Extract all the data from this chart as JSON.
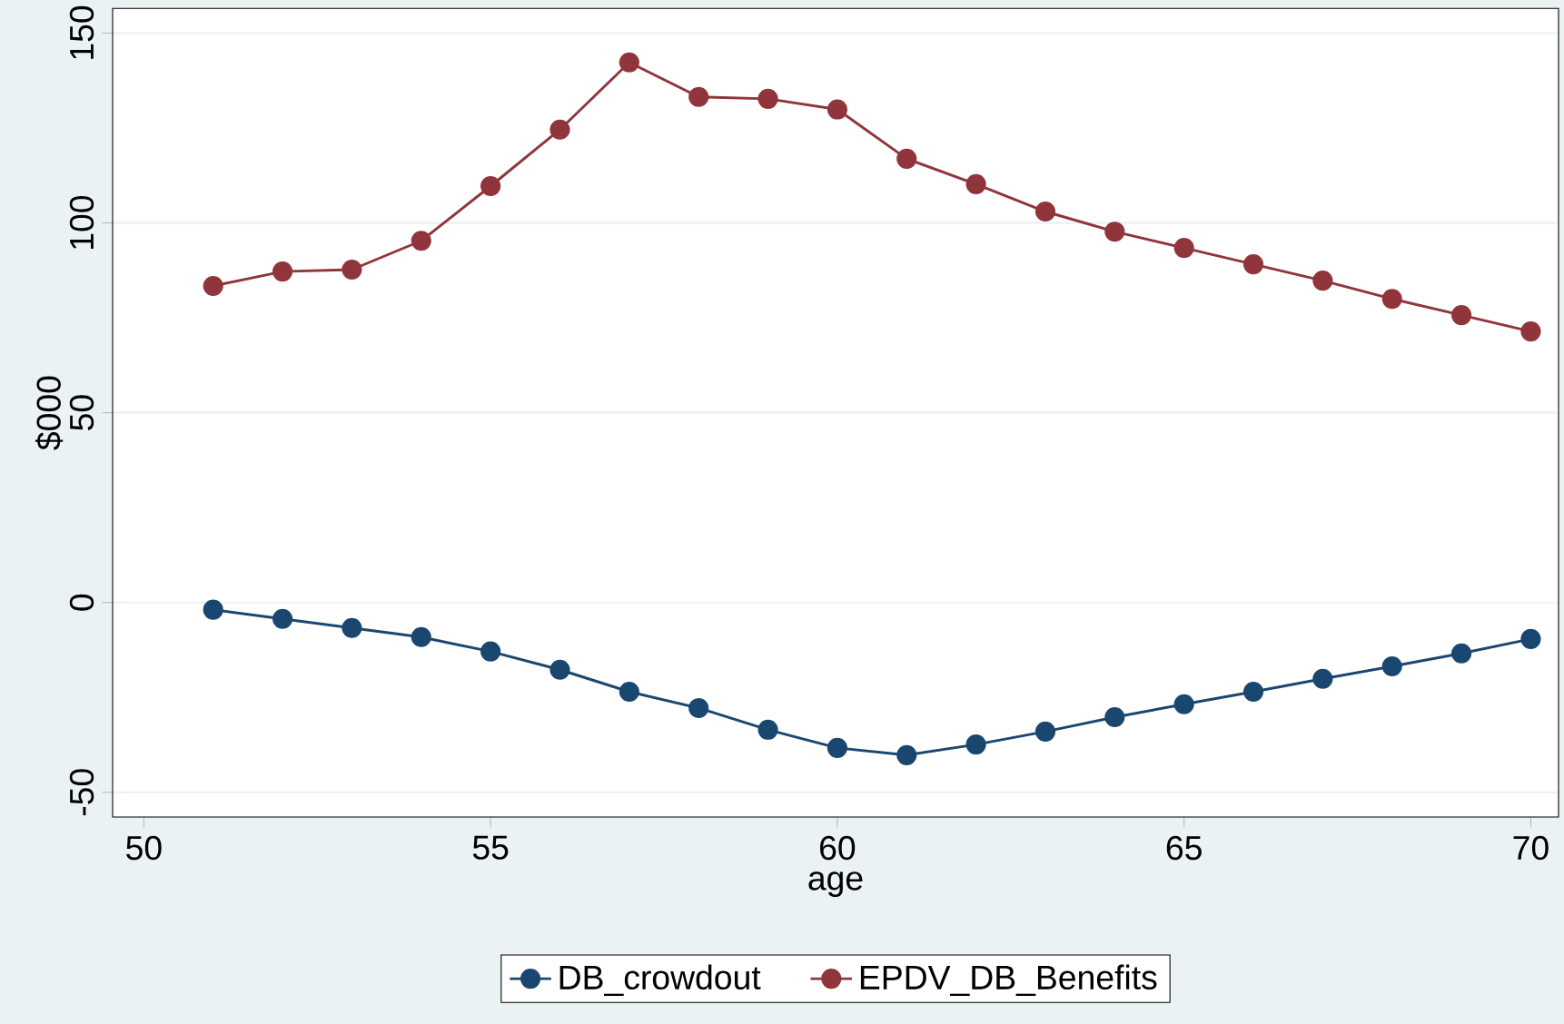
{
  "chart_data": {
    "type": "line",
    "xlabel": "age",
    "ylabel": "$000",
    "x": [
      51,
      52,
      53,
      54,
      55,
      56,
      57,
      58,
      59,
      60,
      61,
      62,
      63,
      64,
      65,
      66,
      67,
      68,
      69,
      70
    ],
    "series": [
      {
        "name": "DB_crowdout",
        "color": "#1a476f",
        "values": [
          -1.9,
          -4.3,
          -6.7,
          -9.1,
          -12.9,
          -17.7,
          -23.5,
          -27.8,
          -33.5,
          -38.3,
          -40.2,
          -37.4,
          -34,
          -30.2,
          -26.8,
          -23.5,
          -20.1,
          -16.8,
          -13.4,
          -9.6
        ]
      },
      {
        "name": "EPDV_DB_Benefits",
        "color": "#90353b",
        "values": [
          83.4,
          87.2,
          87.7,
          95.3,
          109.7,
          124.6,
          142.3,
          133.2,
          132.7,
          129.9,
          116.9,
          110.2,
          103,
          97.7,
          93.4,
          89.1,
          84.8,
          80,
          75.7,
          71.4
        ]
      }
    ],
    "xlim": [
      49.55,
      70.4
    ],
    "xticks": [
      50,
      55,
      60,
      65,
      70
    ],
    "ylim": [
      -56.5,
      156.5
    ],
    "yticks": [
      -50,
      0,
      50,
      100,
      150
    ],
    "grid": "y",
    "legend": "bottom",
    "marker": "circle",
    "line_style": "solid"
  }
}
